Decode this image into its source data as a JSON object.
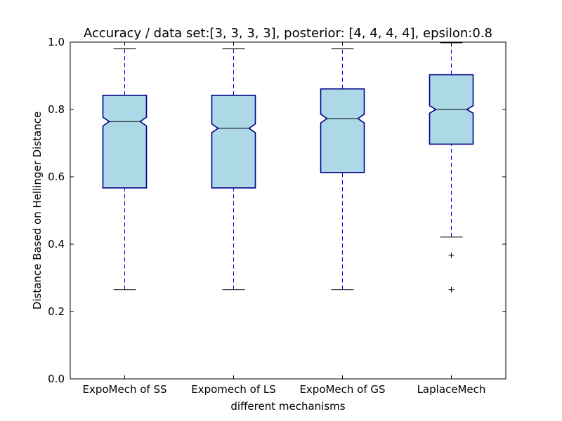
{
  "chart_data": {
    "type": "boxplot",
    "title": "Accuracy / data set:[3, 3, 3, 3], posterior: [4, 4, 4, 4], epsilon:0.8",
    "xlabel": "different mechanisms",
    "ylabel": "Distance Based on Hellinger Distance",
    "ylim": [
      0.0,
      1.0
    ],
    "yticks": [
      "0.0",
      "0.2",
      "0.4",
      "0.6",
      "0.8",
      "1.0"
    ],
    "grid": false,
    "notched": true,
    "categories": [
      "ExpoMech of SS",
      "Expomech of LS",
      "ExpoMech of GS",
      "LaplaceMech"
    ],
    "boxes": [
      {
        "whisker_low": 0.265,
        "q1": 0.567,
        "median": 0.764,
        "q3": 0.842,
        "whisker_high": 0.98,
        "notch_low": 0.751,
        "notch_high": 0.777,
        "outliers": []
      },
      {
        "whisker_low": 0.265,
        "q1": 0.567,
        "median": 0.744,
        "q3": 0.842,
        "whisker_high": 0.98,
        "notch_low": 0.731,
        "notch_high": 0.757,
        "outliers": []
      },
      {
        "whisker_low": 0.265,
        "q1": 0.613,
        "median": 0.773,
        "q3": 0.861,
        "whisker_high": 0.98,
        "notch_low": 0.76,
        "notch_high": 0.786,
        "outliers": []
      },
      {
        "whisker_low": 0.421,
        "q1": 0.697,
        "median": 0.8,
        "q3": 0.903,
        "whisker_high": 0.998,
        "notch_low": 0.789,
        "notch_high": 0.811,
        "outliers": [
          0.367,
          0.265
        ]
      }
    ],
    "colors": {
      "box_fill": "#add8e6",
      "box_edge": "#00008b",
      "whisker": "#0000ff",
      "median": "#000000",
      "cap": "#000000"
    }
  }
}
